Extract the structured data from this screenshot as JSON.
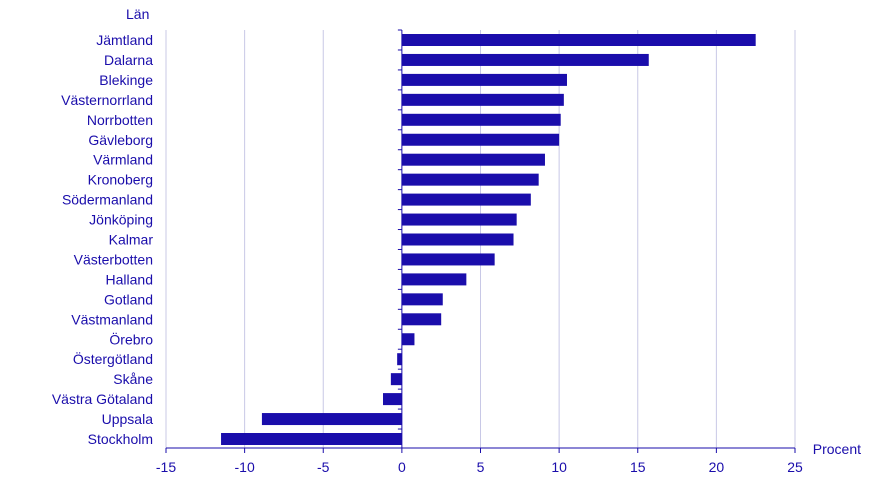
{
  "chart_data": {
    "type": "bar",
    "orientation": "horizontal",
    "ylabel": "Län",
    "xlabel": "Procent",
    "xlim": [
      -15,
      25
    ],
    "xticks": [
      -15,
      -10,
      -5,
      0,
      5,
      10,
      15,
      20,
      25
    ],
    "grid": true,
    "bar_color": "#1a0dab",
    "grid_color": "#c8c8e6",
    "text_color": "#1a0dab",
    "categories": [
      "Jämtland",
      "Dalarna",
      "Blekinge",
      "Västernorrland",
      "Norrbotten",
      "Gävleborg",
      "Värmland",
      "Kronoberg",
      "Södermanland",
      "Jönköping",
      "Kalmar",
      "Västerbotten",
      "Halland",
      "Gotland",
      "Västmanland",
      "Örebro",
      "Östergötland",
      "Skåne",
      "Västra Götaland",
      "Uppsala",
      "Stockholm"
    ],
    "values": [
      22.5,
      15.7,
      10.5,
      10.3,
      10.1,
      10.0,
      9.1,
      8.7,
      8.2,
      7.3,
      7.1,
      5.9,
      4.1,
      2.6,
      2.5,
      0.8,
      -0.3,
      -0.7,
      -1.2,
      -8.9,
      -11.5
    ]
  }
}
